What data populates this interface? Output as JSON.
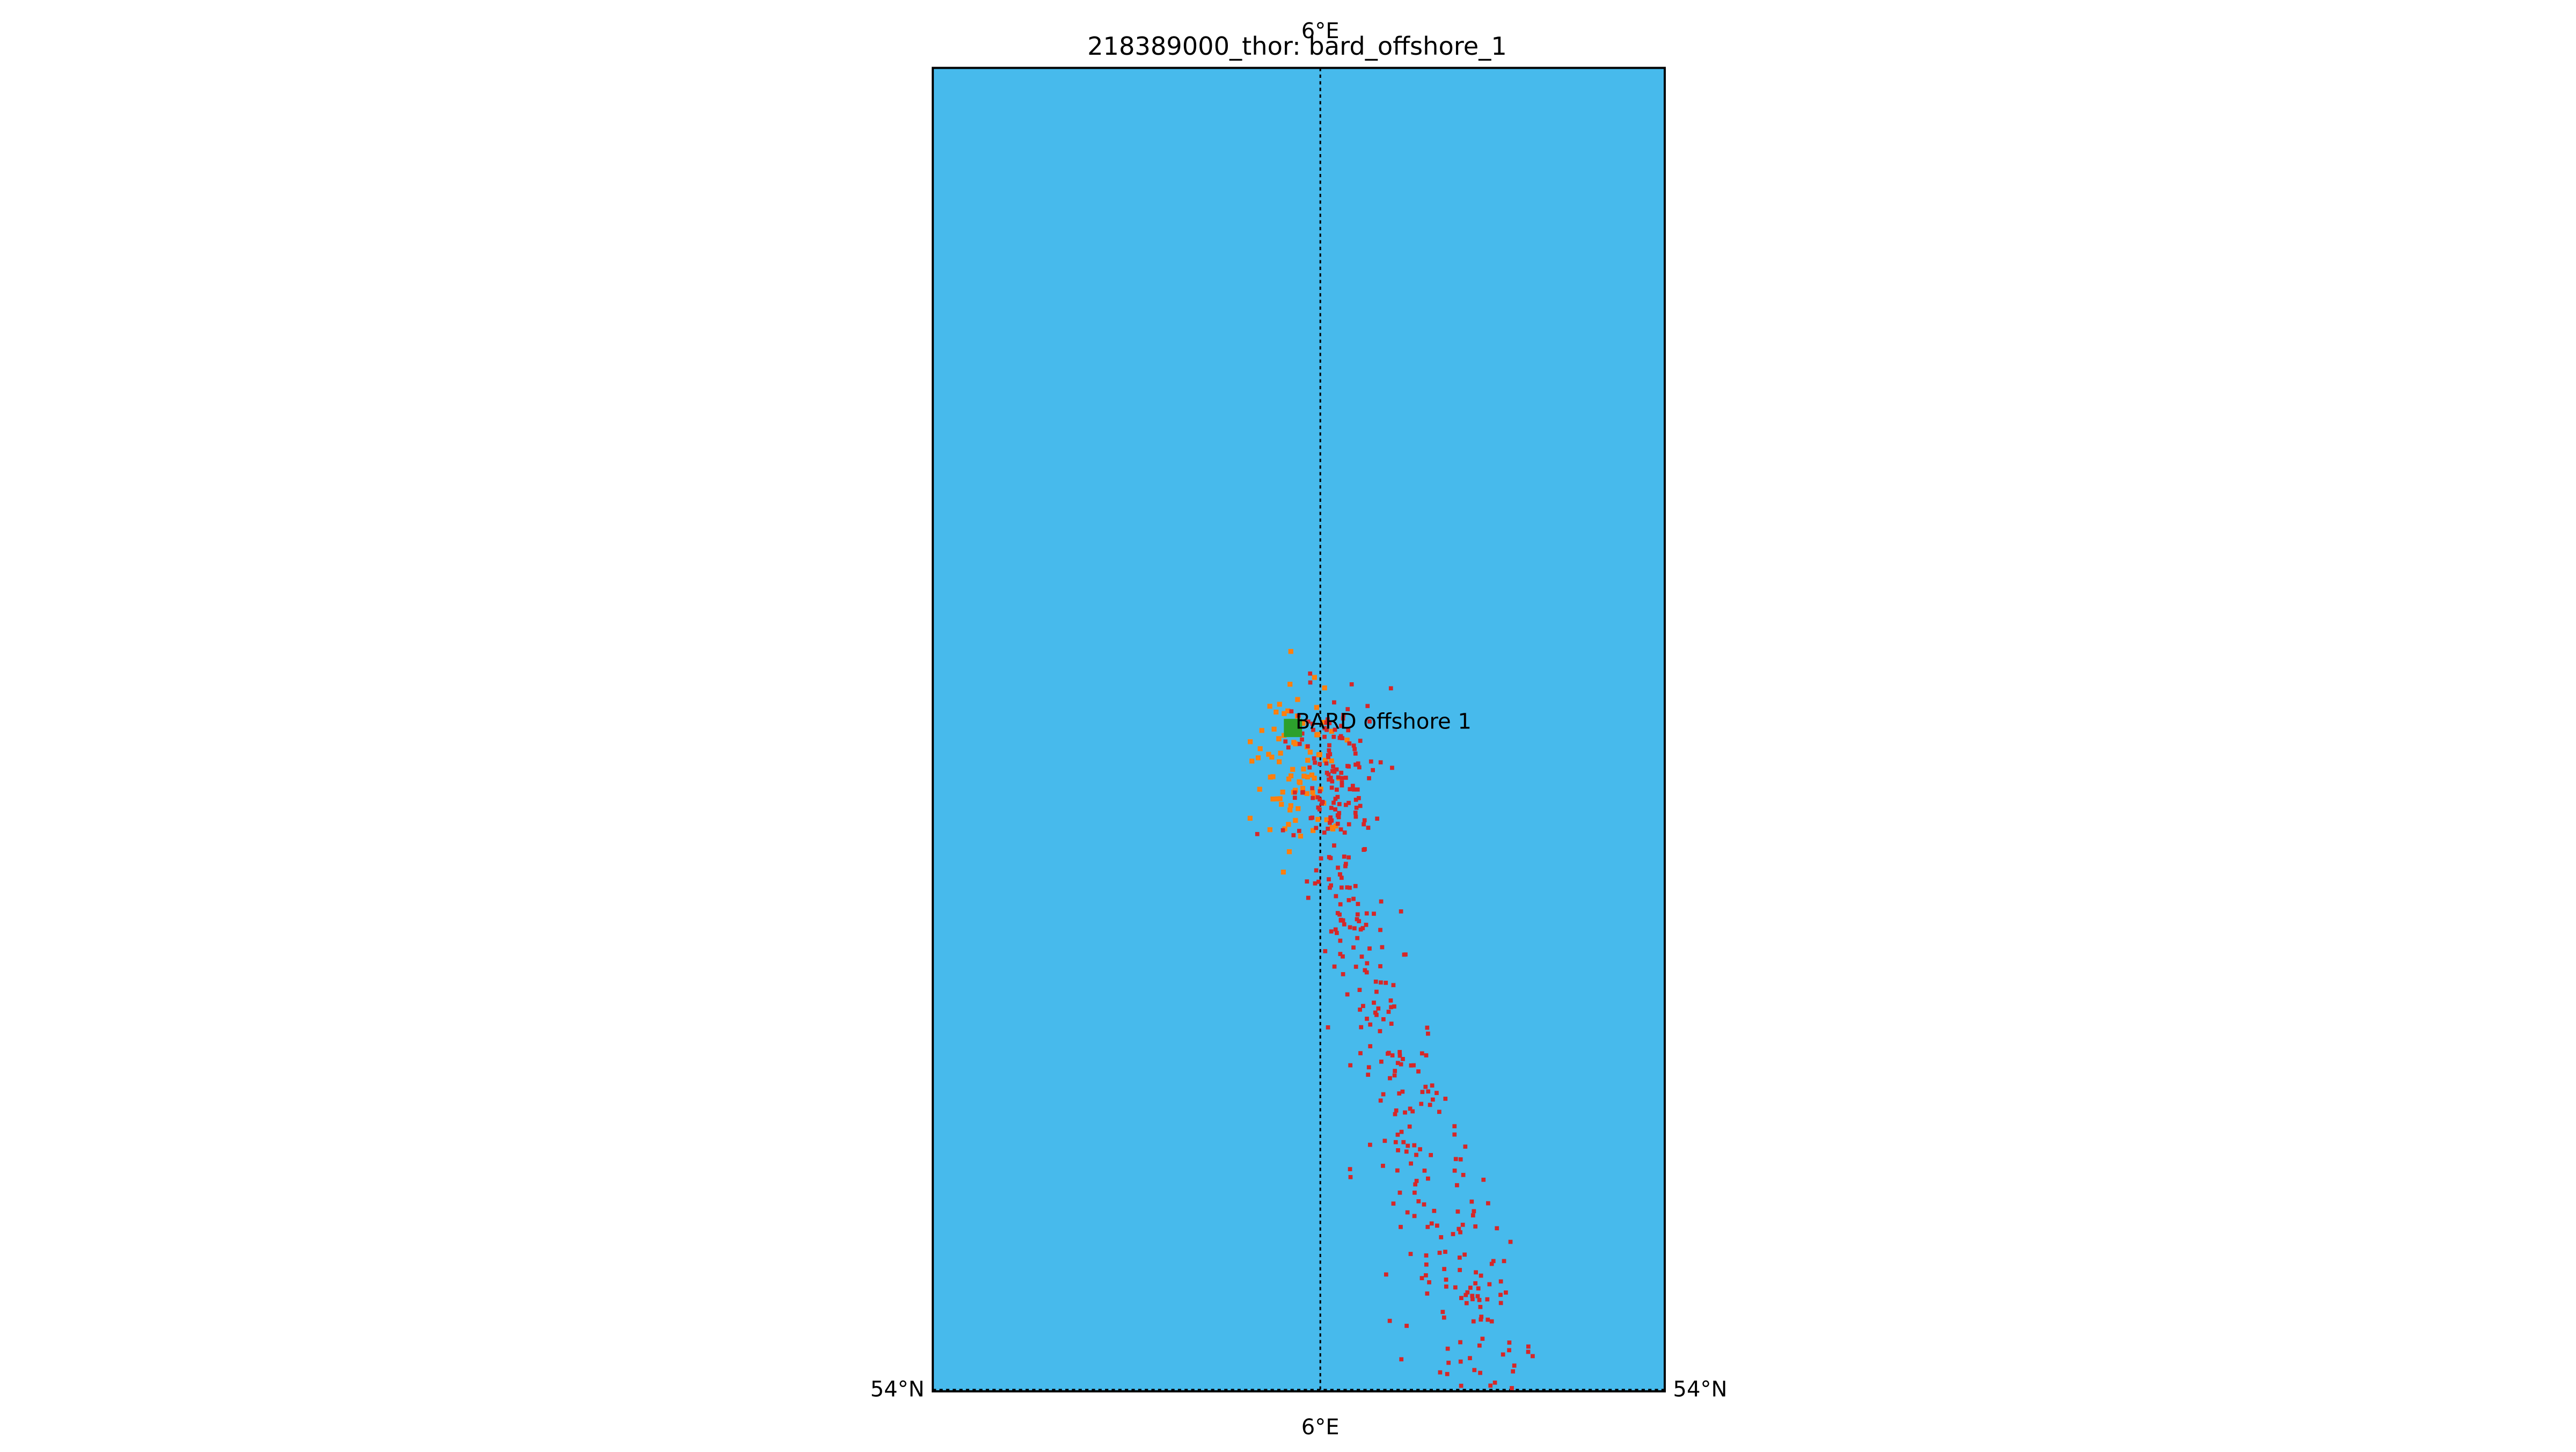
{
  "title": "218389000_thor: bard_offshore_1",
  "map": {
    "ocean_color": "#47baec",
    "frame_color": "#000000",
    "gridline_color": "#000000",
    "lon_label_top": "6°E",
    "lon_label_bottom": "6°E",
    "lat_label_left": "54°N",
    "lat_label_right": "54°N",
    "lon_range": [
      5.93,
      6.07
    ],
    "lat_range": [
      54.0,
      54.26
    ],
    "gridlines": {
      "lon": [
        6.0
      ],
      "lat": [
        54.0
      ]
    }
  },
  "marker": {
    "label": "BARD offshore 1",
    "color": "#2ca02c",
    "lon": 5.995,
    "lat": 54.13
  },
  "track": {
    "orange_color": "#ff7f0e",
    "red_color": "#d62728"
  }
}
